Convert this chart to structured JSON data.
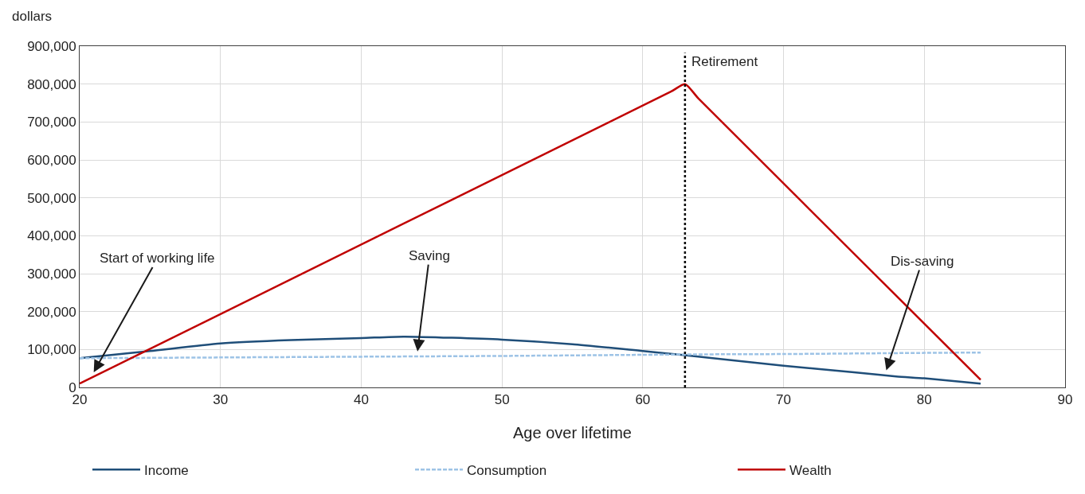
{
  "chart_data": {
    "type": "line",
    "xlabel": "Age over lifetime",
    "ylabel": "dollars",
    "xlim": [
      20,
      90
    ],
    "xticks": [
      20,
      30,
      40,
      50,
      60,
      70,
      80,
      90
    ],
    "ylim": [
      0,
      900000
    ],
    "yticks": [
      {
        "value": 0,
        "label": "0"
      },
      {
        "value": 100000,
        "label": "100,000"
      },
      {
        "value": 200000,
        "label": "200,000"
      },
      {
        "value": 300000,
        "label": "300,000"
      },
      {
        "value": 400000,
        "label": "400,000"
      },
      {
        "value": 500000,
        "label": "500,000"
      },
      {
        "value": 600000,
        "label": "600,000"
      },
      {
        "value": 700000,
        "label": "700,000"
      },
      {
        "value": 800000,
        "label": "800,000"
      },
      {
        "value": 900000,
        "label": "900,000"
      }
    ],
    "grid": true,
    "legend": "bottom",
    "marker": "none",
    "series": [
      {
        "name": "Income",
        "color": "#1f4e79",
        "line_style": "solid",
        "x": [
          20,
          25,
          30,
          35,
          40,
          43,
          50,
          55,
          60,
          63,
          70,
          75,
          78,
          80,
          84
        ],
        "values": [
          77000,
          96000,
          116000,
          125000,
          130000,
          134000,
          126000,
          114000,
          96000,
          85000,
          57000,
          40000,
          29000,
          24000,
          10000
        ]
      },
      {
        "name": "Consumption",
        "color": "#9dc3e6",
        "line_style": "dashed",
        "x": [
          20,
          30,
          40,
          50,
          60,
          63,
          70,
          80,
          84
        ],
        "values": [
          77000,
          79000,
          81000,
          83000,
          86000,
          87000,
          88000,
          91000,
          92000
        ]
      },
      {
        "name": "Wealth",
        "color": "#c00000",
        "line_style": "solid",
        "x": [
          20,
          62,
          63,
          64,
          84
        ],
        "values": [
          10000,
          780000,
          800000,
          760000,
          20000
        ]
      }
    ],
    "ref_lines": [
      {
        "axis": "x",
        "value": 63,
        "label": "Retirement",
        "color": "#000000",
        "line_style": "dotted"
      }
    ],
    "annotations": [
      {
        "text": "Start of working life",
        "x": 21,
        "y": 40000
      },
      {
        "text": "Saving",
        "x": 44,
        "y": 95000
      },
      {
        "text": "Dis-saving",
        "x": 77.3,
        "y": 45000
      }
    ]
  }
}
